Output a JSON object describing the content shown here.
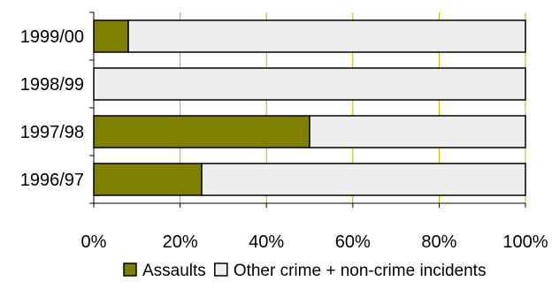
{
  "chart_data": {
    "type": "bar",
    "orientation": "horizontal",
    "stacked": true,
    "percent": true,
    "categories": [
      "1999/00",
      "1998/99",
      "1997/98",
      "1996/97"
    ],
    "series": [
      {
        "name": "Assaults",
        "values": [
          8,
          0,
          50,
          25
        ],
        "color": "#808000"
      },
      {
        "name": "Other crime + non-crime incidents",
        "values": [
          92,
          100,
          50,
          75
        ],
        "color": "#eeeeee"
      }
    ],
    "xlim": [
      0,
      100
    ],
    "xticks": [
      "0%",
      "20%",
      "40%",
      "60%",
      "80%",
      "100%"
    ],
    "grid": true,
    "legend": "bottom"
  }
}
